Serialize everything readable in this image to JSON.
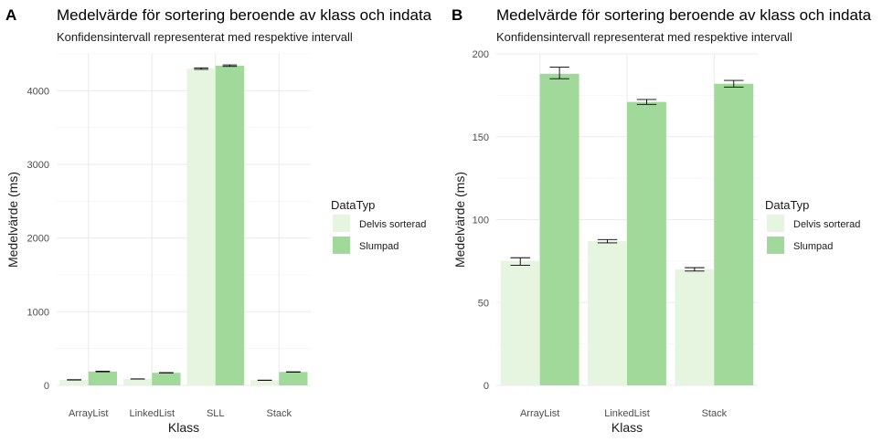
{
  "chart_data": [
    {
      "panel_tag": "A",
      "type": "bar",
      "title": "Medelvärde för sortering beroende av klass och indata",
      "subtitle": "Konfidensintervall representerat med respektive intervall",
      "xlabel": "Klass",
      "ylabel": "Medelvärde (ms)",
      "categories": [
        "ArrayList",
        "LinkedList",
        "SLL",
        "Stack"
      ],
      "ylim": [
        0,
        4500
      ],
      "yticks": [
        0,
        1000,
        2000,
        3000,
        4000
      ],
      "legend": {
        "title": "DataTyp",
        "position": "right"
      },
      "grid": true,
      "series": [
        {
          "name": "Delvis sorterad",
          "color": "#e5f5e0",
          "values": [
            75,
            87,
            4300,
            70
          ],
          "ci": [
            [
              73,
              77
            ],
            [
              86,
              88
            ],
            [
              4290,
              4310
            ],
            [
              69,
              71
            ]
          ]
        },
        {
          "name": "Slumpad",
          "color": "#a1d99b",
          "values": [
            188,
            171,
            4340,
            182
          ],
          "ci": [
            [
              185,
              192
            ],
            [
              169,
              173
            ],
            [
              4330,
              4350
            ],
            [
              180,
              184
            ]
          ]
        }
      ]
    },
    {
      "panel_tag": "B",
      "type": "bar",
      "title": "Medelvärde för sortering beroende av klass och indata",
      "subtitle": "Konfidensintervall representerat med respektive intervall",
      "xlabel": "Klass",
      "ylabel": "Medelvärde (ms)",
      "categories": [
        "ArrayList",
        "LinkedList",
        "Stack"
      ],
      "ylim": [
        0,
        200
      ],
      "yticks": [
        0,
        50,
        100,
        150,
        200
      ],
      "legend": {
        "title": "DataTyp",
        "position": "right"
      },
      "grid": true,
      "series": [
        {
          "name": "Delvis sorterad",
          "color": "#e5f5e0",
          "values": [
            75,
            87,
            70
          ],
          "ci": [
            [
              72.5,
              77
            ],
            [
              86,
              88
            ],
            [
              69,
              71
            ]
          ]
        },
        {
          "name": "Slumpad",
          "color": "#a1d99b",
          "values": [
            188,
            171,
            182
          ],
          "ci": [
            [
              185,
              192
            ],
            [
              169.5,
              172.5
            ],
            [
              180,
              184
            ]
          ]
        }
      ]
    }
  ]
}
